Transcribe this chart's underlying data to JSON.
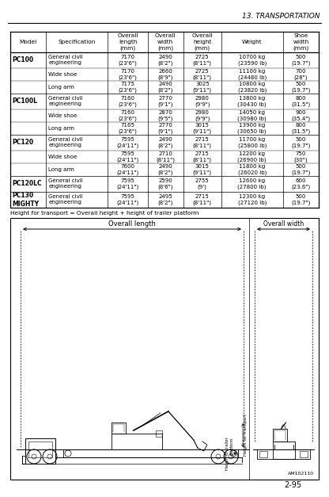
{
  "page_header": "13. TRANSPORTATION",
  "page_footer": "2-95",
  "table_headers": [
    "Model",
    "Specification",
    "Overall\nlength\n(mm)",
    "Overall\nwidth\n(mm)",
    "Overall\nheight\n(mm)",
    "Weight",
    "Shoe\nwidth\n(mm)"
  ],
  "table_rows": [
    [
      "PC100",
      "General civil\nengineering",
      "7170\n(23'6\")",
      "2490\n(8'2\")",
      "2725\n(8'11\")",
      "10700 kg\n(23590 lb)",
      "500\n(19.7\")"
    ],
    [
      "",
      "Wide shoe",
      "7170\n(23'6\")",
      "2660\n(8'9\")",
      "2725\n(8'11\")",
      "11100 kg\n(24480 lb)",
      "700\n(28\")"
    ],
    [
      "",
      "Long arm",
      "7175\n(23'6\")",
      "2490\n(8'2\")",
      "3025\n(9'11\")",
      "10800 kg\n(23820 lb)",
      "500\n(19.7\")"
    ],
    [
      "PC100L",
      "General civil\nengineering",
      "7160\n(23'6\")",
      "2770\n(9'1\")",
      "2980\n(9'9\")",
      "13800 kg\n(30430 lb)",
      "800\n(31.5\")"
    ],
    [
      "",
      "Wide shoe",
      "7160\n(23'6\")",
      "2870\n(9'5\")",
      "2980\n(9'9\")",
      "14050 kg\n(30980 lb)",
      "900\n(35.4\")"
    ],
    [
      "",
      "Long arm",
      "7165\n(23'6\")",
      "2770\n(9'1\")",
      "3015\n(9'11\")",
      "13900 kg\n(30650 lb)",
      "800\n(31.5\")"
    ],
    [
      "PC120",
      "General civil\nengineering",
      "7595\n(24'11\")",
      "2490\n(8'2\")",
      "2715\n(8'11\")",
      "11700 kg\n(25800 lb)",
      "500\n(19.7\")"
    ],
    [
      "",
      "Wide shoe",
      "7595\n(24'11\")",
      "2710\n(8'11\")",
      "2715\n(8'11\")",
      "12200 kg\n(26900 lb)",
      "750\n(30\")"
    ],
    [
      "",
      "Long arm",
      "7600\n(24'11\")",
      "2490\n(8'2\")",
      "3015\n(9'11\")",
      "11800 kg\n(26020 lb)",
      "500\n(19.7\")"
    ],
    [
      "PC120LC",
      "General civil\nengineering",
      "7595\n(24'11\")",
      "2590\n(8'6\")",
      "2755\n(9')",
      "12600 kg\n(27800 lb)",
      "600\n(23.6\")"
    ],
    [
      "PC130\nMIGHTY",
      "General civil\nengineering",
      "7595\n(24'11\")",
      "2495\n(8'2\")",
      "2715\n(8'11\")",
      "12300 kg\n(27120 lb)",
      "500\n(19.7\")"
    ]
  ],
  "footnote": "Height for transport = Overall height + height of trailer platform",
  "image_label_length": "Overall length",
  "image_label_width": "Overall width",
  "image_label_height_transport": "Height for transport",
  "image_label_height_trailer": "Height of trailer\nplatform",
  "image_code": "AM102110",
  "bg_color": "#ffffff",
  "text_color": "#000000"
}
